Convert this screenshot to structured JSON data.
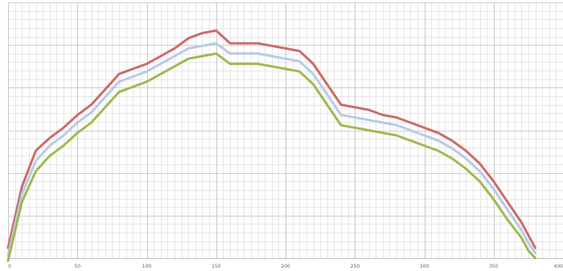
{
  "chart_data": {
    "type": "line",
    "title": "",
    "xlabel": "",
    "ylabel": "",
    "xlim": [
      0,
      400
    ],
    "ylim": [
      0,
      1
    ],
    "grid": true,
    "legend": "none",
    "x_ticks": [
      0,
      50,
      100,
      150,
      200,
      250,
      300,
      350,
      400
    ],
    "x": [
      0,
      10,
      20,
      30,
      40,
      50,
      60,
      70,
      80,
      90,
      100,
      110,
      120,
      130,
      140,
      150,
      160,
      170,
      180,
      190,
      200,
      210,
      220,
      230,
      240,
      250,
      260,
      270,
      280,
      290,
      300,
      310,
      320,
      330,
      340,
      350,
      360,
      370,
      375,
      380
    ],
    "series": [
      {
        "color": "#cc6b6b",
        "values": [
          0.04,
          0.28,
          0.42,
          0.47,
          0.51,
          0.56,
          0.6,
          0.66,
          0.72,
          0.74,
          0.76,
          0.79,
          0.82,
          0.86,
          0.88,
          0.89,
          0.84,
          0.84,
          0.84,
          0.83,
          0.82,
          0.81,
          0.76,
          0.68,
          0.6,
          0.59,
          0.58,
          0.56,
          0.55,
          0.53,
          0.51,
          0.49,
          0.46,
          0.42,
          0.37,
          0.3,
          0.22,
          0.14,
          0.09,
          0.04
        ]
      },
      {
        "color": "#b6cbe6",
        "values": [
          0.01,
          0.25,
          0.38,
          0.44,
          0.48,
          0.53,
          0.57,
          0.63,
          0.69,
          0.71,
          0.73,
          0.76,
          0.79,
          0.82,
          0.83,
          0.84,
          0.8,
          0.8,
          0.8,
          0.79,
          0.78,
          0.77,
          0.72,
          0.64,
          0.56,
          0.55,
          0.54,
          0.53,
          0.52,
          0.5,
          0.48,
          0.46,
          0.43,
          0.39,
          0.34,
          0.27,
          0.19,
          0.11,
          0.06,
          0.02
        ]
      },
      {
        "color": "#9fba4f",
        "values": [
          -0.01,
          0.22,
          0.34,
          0.4,
          0.44,
          0.49,
          0.53,
          0.59,
          0.65,
          0.67,
          0.69,
          0.72,
          0.75,
          0.78,
          0.79,
          0.8,
          0.76,
          0.76,
          0.76,
          0.75,
          0.74,
          0.73,
          0.68,
          0.6,
          0.52,
          0.51,
          0.5,
          0.49,
          0.48,
          0.46,
          0.44,
          0.42,
          0.39,
          0.35,
          0.3,
          0.23,
          0.15,
          0.08,
          0.03,
          0.0
        ]
      }
    ]
  }
}
